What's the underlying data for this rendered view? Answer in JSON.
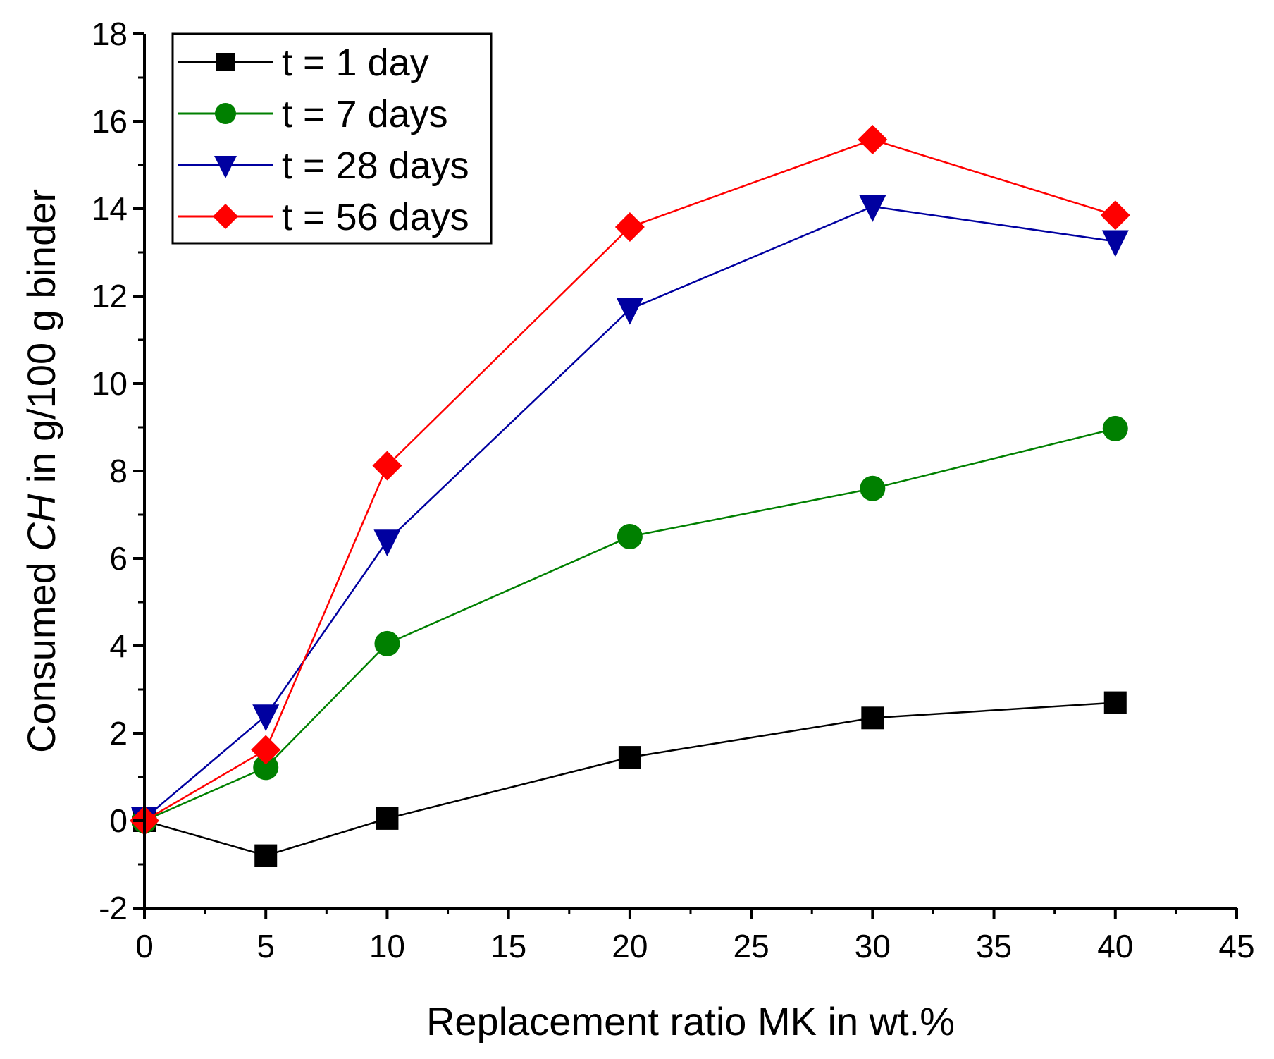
{
  "chart_data": {
    "type": "line",
    "title": "",
    "xlabel": "Replacement ratio MK in wt.%",
    "ylabel": {
      "prefix": "Consumed ",
      "italic": "CH",
      "suffix": " in g/100 g binder"
    },
    "xlim": [
      0,
      45
    ],
    "ylim": [
      -2,
      18
    ],
    "xticks": [
      0,
      5,
      10,
      15,
      20,
      25,
      30,
      35,
      40,
      45
    ],
    "yticks": [
      -2,
      0,
      2,
      4,
      6,
      8,
      10,
      12,
      14,
      16,
      18
    ],
    "grid": false,
    "legend_position": "top-left",
    "x": [
      0,
      5,
      10,
      20,
      30,
      40
    ],
    "series": [
      {
        "name": "t = 1 day",
        "color": "#000000",
        "marker": "square",
        "values": [
          0,
          -0.8,
          0.05,
          1.45,
          2.35,
          2.7
        ]
      },
      {
        "name": "t = 7 days",
        "color": "#008000",
        "marker": "circle",
        "values": [
          0,
          1.22,
          4.05,
          6.5,
          7.6,
          8.97
        ]
      },
      {
        "name": "t = 28 days",
        "color": "#0000a0",
        "marker": "triangle-down",
        "values": [
          0.05,
          2.4,
          6.4,
          11.7,
          14.05,
          13.25
        ]
      },
      {
        "name": "t = 56 days",
        "color": "#ff0000",
        "marker": "diamond",
        "values": [
          0,
          1.62,
          8.12,
          13.58,
          15.58,
          13.85
        ]
      }
    ]
  }
}
